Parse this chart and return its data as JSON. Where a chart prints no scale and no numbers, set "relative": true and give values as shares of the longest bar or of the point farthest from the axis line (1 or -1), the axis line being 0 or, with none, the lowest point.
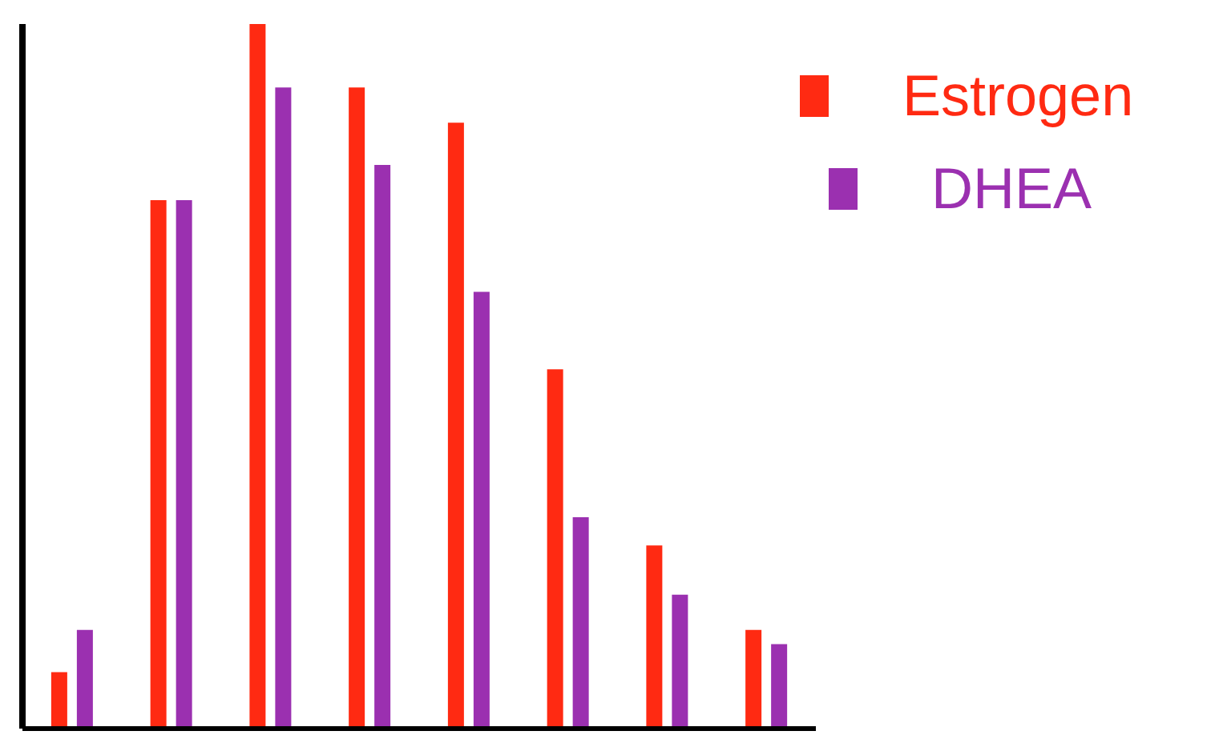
{
  "chart_data": {
    "type": "bar",
    "relative": true,
    "categories": [
      null,
      null,
      null,
      null,
      null,
      null,
      null,
      null
    ],
    "series": [
      {
        "name": "Estrogen",
        "color": "#ff2a12",
        "values": [
          0.08,
          0.75,
          1,
          0.91,
          0.86,
          0.51,
          0.26,
          0.14
        ]
      },
      {
        "name": "DHEA",
        "color": "#9b30b0",
        "values": [
          0.14,
          0.75,
          0.91,
          0.8,
          0.62,
          0.3,
          0.19,
          0.12
        ]
      }
    ],
    "legend": "top right",
    "grid": false
  }
}
